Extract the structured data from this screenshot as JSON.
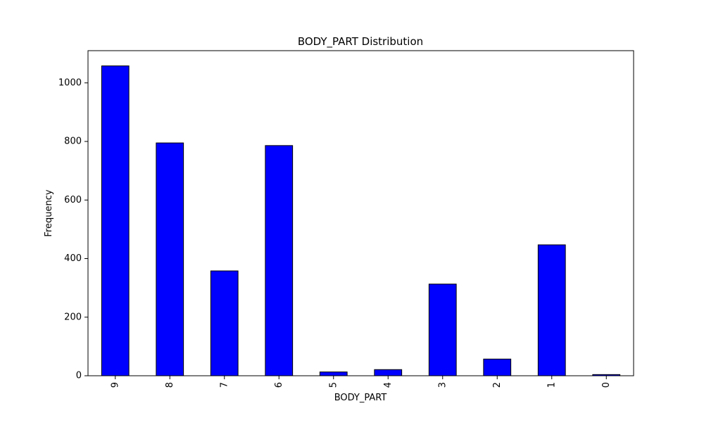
{
  "chart_data": {
    "type": "bar",
    "title": "BODY_PART Distribution",
    "xlabel": "BODY_PART",
    "ylabel": "Frequency",
    "categories": [
      "9",
      "8",
      "7",
      "6",
      "5",
      "4",
      "3",
      "2",
      "1",
      "0"
    ],
    "values": [
      1058,
      795,
      358,
      786,
      13,
      21,
      313,
      57,
      447,
      4
    ],
    "ylim": [
      0,
      1110
    ],
    "yticks": [
      0,
      200,
      400,
      600,
      800,
      1000
    ],
    "grid": false,
    "legend": "none",
    "colors": {
      "bar_fill": "#0000ff",
      "bar_edge": "#000000",
      "axis": "#000000",
      "background": "#ffffff"
    }
  }
}
